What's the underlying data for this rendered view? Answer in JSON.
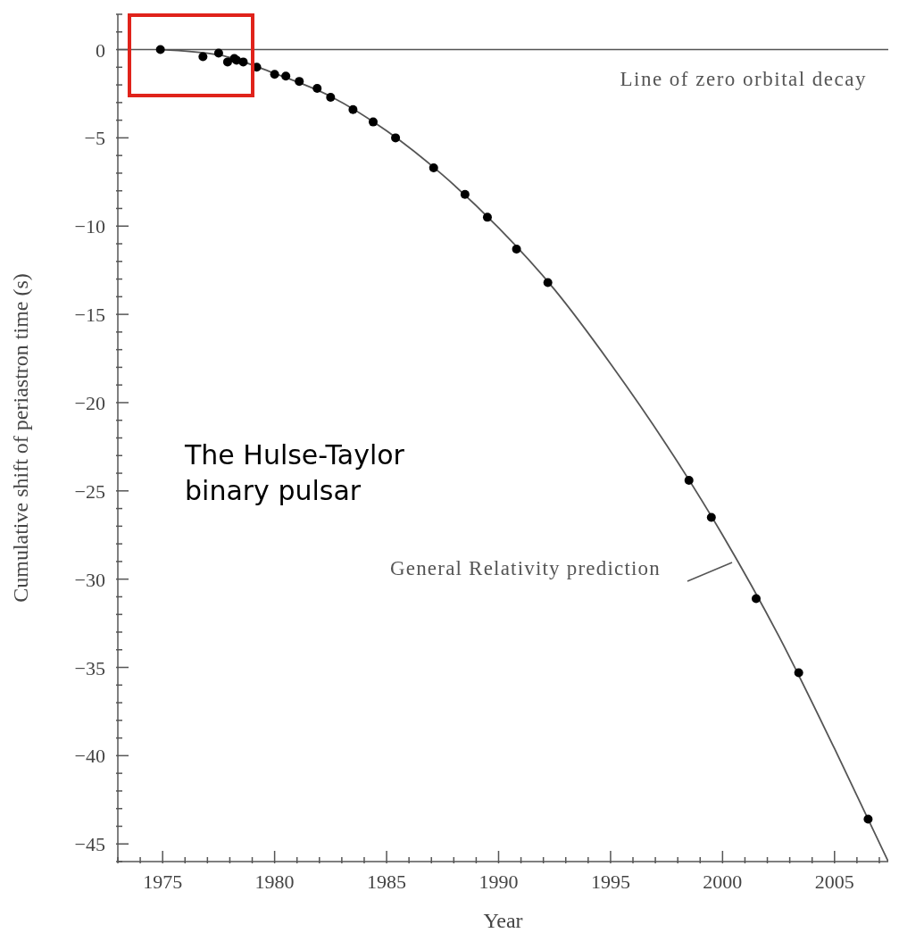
{
  "chart_data": {
    "type": "scatter",
    "xlabel": "Year",
    "ylabel": "Cumulative shift of periastron time (s)",
    "xlim": [
      1973,
      2007.4
    ],
    "ylim": [
      -46,
      2
    ],
    "xticks": [
      {
        "value": 1973,
        "label": null
      },
      {
        "value": 1974,
        "label": null
      },
      1975,
      {
        "value": 1976,
        "label": null
      },
      {
        "value": 1977,
        "label": null
      },
      {
        "value": 1978,
        "label": null
      },
      {
        "value": 1979,
        "label": null
      },
      1980,
      {
        "value": 1981,
        "label": null
      },
      {
        "value": 1982,
        "label": null
      },
      {
        "value": 1983,
        "label": null
      },
      {
        "value": 1984,
        "label": null
      },
      1985,
      {
        "value": 1986,
        "label": null
      },
      {
        "value": 1987,
        "label": null
      },
      {
        "value": 1988,
        "label": null
      },
      {
        "value": 1989,
        "label": null
      },
      1990,
      {
        "value": 1991,
        "label": null
      },
      {
        "value": 1992,
        "label": null
      },
      {
        "value": 1993,
        "label": null
      },
      {
        "value": 1994,
        "label": null
      },
      1995,
      {
        "value": 1996,
        "label": null
      },
      {
        "value": 1997,
        "label": null
      },
      {
        "value": 1998,
        "label": null
      },
      {
        "value": 1999,
        "label": null
      },
      2000,
      {
        "value": 2001,
        "label": null
      },
      {
        "value": 2002,
        "label": null
      },
      {
        "value": 2003,
        "label": null
      },
      {
        "value": 2004,
        "label": null
      },
      2005,
      {
        "value": 2006,
        "label": null
      },
      {
        "value": 2007,
        "label": null
      }
    ],
    "yticks": [
      {
        "value": 2,
        "label": null
      },
      {
        "value": 1,
        "label": null
      },
      0,
      {
        "value": -1,
        "label": null
      },
      {
        "value": -2,
        "label": null
      },
      {
        "value": -3,
        "label": null
      },
      {
        "value": -4,
        "label": null
      },
      -5,
      {
        "value": -6,
        "label": null
      },
      {
        "value": -7,
        "label": null
      },
      {
        "value": -8,
        "label": null
      },
      {
        "value": -9,
        "label": null
      },
      -10,
      {
        "value": -11,
        "label": null
      },
      {
        "value": -12,
        "label": null
      },
      {
        "value": -13,
        "label": null
      },
      {
        "value": -14,
        "label": null
      },
      -15,
      {
        "value": -16,
        "label": null
      },
      {
        "value": -17,
        "label": null
      },
      {
        "value": -18,
        "label": null
      },
      {
        "value": -19,
        "label": null
      },
      -20,
      {
        "value": -21,
        "label": null
      },
      {
        "value": -22,
        "label": null
      },
      {
        "value": -23,
        "label": null
      },
      {
        "value": -24,
        "label": null
      },
      -25,
      {
        "value": -26,
        "label": null
      },
      {
        "value": -27,
        "label": null
      },
      {
        "value": -28,
        "label": null
      },
      {
        "value": -29,
        "label": null
      },
      -30,
      {
        "value": -31,
        "label": null
      },
      {
        "value": -32,
        "label": null
      },
      {
        "value": -33,
        "label": null
      },
      {
        "value": -34,
        "label": null
      },
      -35,
      {
        "value": -36,
        "label": null
      },
      {
        "value": -37,
        "label": null
      },
      {
        "value": -38,
        "label": null
      },
      {
        "value": -39,
        "label": null
      },
      -40,
      {
        "value": -41,
        "label": null
      },
      {
        "value": -42,
        "label": null
      },
      {
        "value": -43,
        "label": null
      },
      {
        "value": -44,
        "label": null
      },
      -45,
      {
        "value": -46,
        "label": null
      }
    ],
    "grid": false,
    "legend": false,
    "series": [
      {
        "type": "line",
        "color": "#555555",
        "marker": "none",
        "line_style": "solid",
        "x": [
          1974.9,
          1977.5,
          1980,
          1982.5,
          1985,
          1987.5,
          1990,
          1992.5,
          1995,
          1997.5,
          2000,
          2002.5,
          2005,
          2007.4
        ],
        "values": [
          0,
          -0.3,
          -1.35,
          -2.65,
          -4.6,
          -7.1,
          -10.1,
          -13.6,
          -17.8,
          -22.4,
          -27.5,
          -33.2,
          -39.6,
          -46
        ]
      },
      {
        "color": "#000000",
        "marker": "circle",
        "x": [
          1974.9,
          1976.8,
          1977.5,
          1977.9,
          1978.2,
          1978.3,
          1978.6,
          1979.2,
          1980.0,
          1980.5,
          1981.1,
          1981.9,
          1982.5,
          1983.5,
          1984.4,
          1985.4,
          1987.1,
          1988.5,
          1989.5,
          1990.8,
          1992.2,
          1998.5,
          1999.5,
          2001.5,
          2003.4,
          2006.5
        ],
        "values": [
          0.0,
          -0.4,
          -0.2,
          -0.7,
          -0.5,
          -0.6,
          -0.7,
          -1.0,
          -1.4,
          -1.5,
          -1.8,
          -2.2,
          -2.7,
          -3.4,
          -4.1,
          -5.0,
          -6.7,
          -8.2,
          -9.5,
          -11.3,
          -13.2,
          -24.4,
          -26.5,
          -31.1,
          -35.3,
          -43.6
        ]
      }
    ],
    "ref_lines": [
      {
        "axis": "y",
        "value": 0,
        "label": "Line of zero orbital decay",
        "color": "#555555",
        "line_style": "solid"
      }
    ],
    "annotations": [
      "General Relativity prediction",
      "The Hulse-Taylor binary pulsar"
    ]
  }
}
